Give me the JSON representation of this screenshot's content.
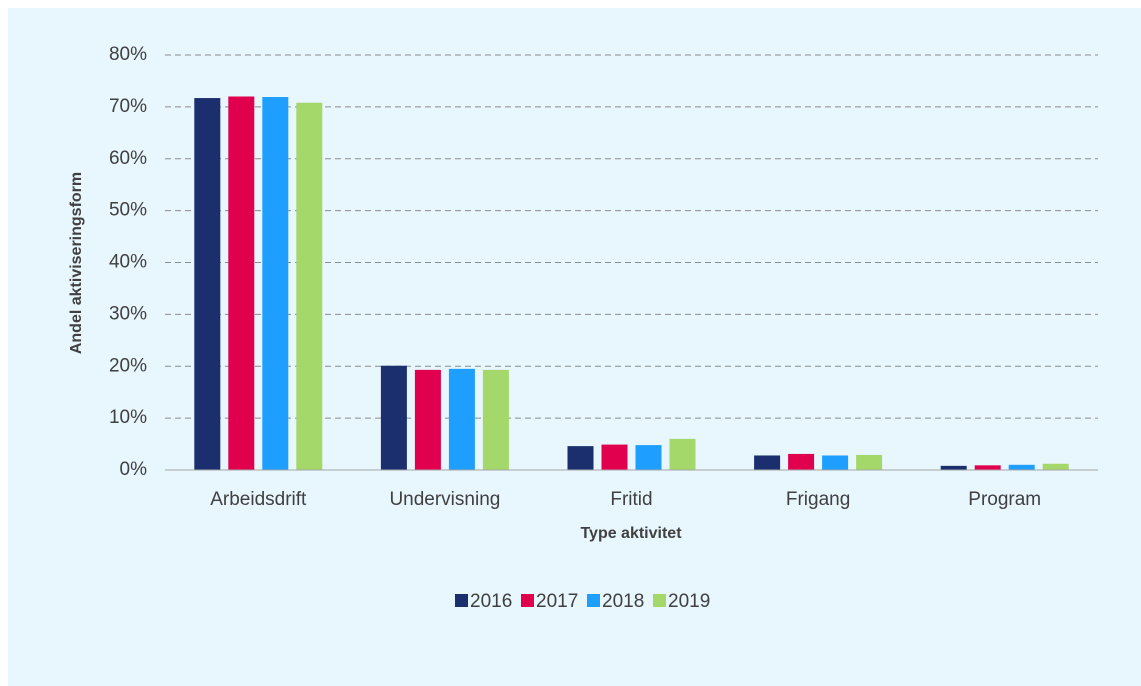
{
  "chart_data": {
    "type": "bar",
    "xlabel": "Type aktivitet",
    "ylabel": "Andel aktiviseringsform",
    "categories": [
      "Arbeidsdrift",
      "Undervisning",
      "Fritid",
      "Frigang",
      "Program"
    ],
    "series": [
      {
        "name": "2016",
        "color": "#1b2f6e",
        "values": [
          71.7,
          20.1,
          4.6,
          2.8,
          0.8
        ]
      },
      {
        "name": "2017",
        "color": "#e0004d",
        "values": [
          72.0,
          19.3,
          4.9,
          3.1,
          0.9
        ]
      },
      {
        "name": "2018",
        "color": "#1e9fff",
        "values": [
          71.9,
          19.5,
          4.8,
          2.8,
          1.0
        ]
      },
      {
        "name": "2019",
        "color": "#a5d86a",
        "values": [
          70.8,
          19.3,
          6.0,
          2.9,
          1.2
        ]
      }
    ],
    "ylim": [
      0,
      80
    ],
    "yticks": [
      {
        "value": 0,
        "label": "0%"
      },
      {
        "value": 10,
        "label": "10%"
      },
      {
        "value": 20,
        "label": "20%"
      },
      {
        "value": 30,
        "label": "30%"
      },
      {
        "value": 40,
        "label": "40%"
      },
      {
        "value": 50,
        "label": "50%"
      },
      {
        "value": 60,
        "label": "60%"
      },
      {
        "value": 70,
        "label": "70%"
      },
      {
        "value": 80,
        "label": "80%"
      }
    ],
    "grid": true,
    "legend": "bottom"
  }
}
